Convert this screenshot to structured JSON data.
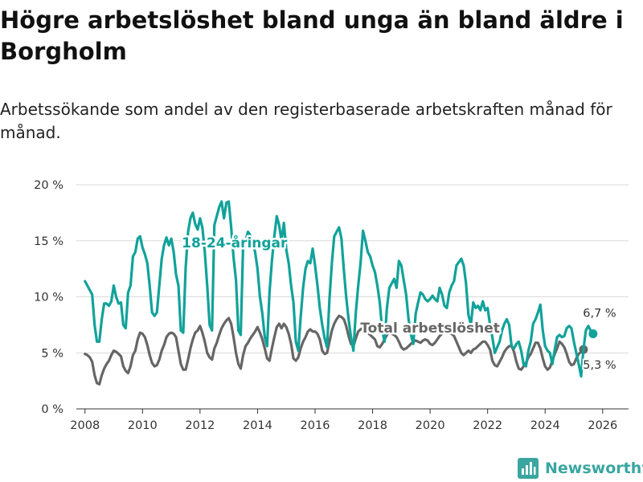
{
  "title": "Högre arbetslöshet bland unga än bland äldre i Borgholm",
  "subtitle": "Arbetssökande som andel av den registerbaserade arbetskraften månad för månad.",
  "brand": {
    "name": "Newsworthy",
    "icon": "bar-chart-logo-icon"
  },
  "colors": {
    "young": "#11a29a",
    "total": "#666666",
    "grid": "#d9d9d9",
    "axis": "#333333"
  },
  "chart_data": {
    "type": "line",
    "title": "Högre arbetslöshet bland unga än bland äldre i Borgholm",
    "xlabel": "",
    "ylabel": "",
    "xlim": [
      2007.7,
      2026.9
    ],
    "ylim": [
      0,
      20
    ],
    "x_ticks": [
      2008,
      2010,
      2012,
      2014,
      2016,
      2018,
      2020,
      2022,
      2024,
      2026
    ],
    "x_tick_labels": [
      "2008",
      "2010",
      "2012",
      "2014",
      "2016",
      "2018",
      "2020",
      "2022",
      "2024",
      "2026"
    ],
    "y_ticks": [
      0,
      5,
      10,
      15,
      20
    ],
    "y_tick_labels": [
      "0 %",
      "5 %",
      "10 %",
      "15 %",
      "20 %"
    ],
    "grid": "horizontal",
    "start": [
      2008,
      1
    ],
    "series": [
      {
        "name": "18-24-åringar",
        "label": "18-24-åringar",
        "end_label": "6,7 %",
        "values": [
          11.4,
          11.0,
          10.6,
          10.2,
          7.5,
          6.0,
          6.0,
          8.0,
          9.4,
          9.4,
          9.2,
          9.6,
          11.0,
          10.0,
          9.4,
          9.5,
          7.5,
          7.2,
          10.4,
          11.0,
          13.6,
          14.0,
          15.2,
          15.4,
          14.4,
          13.8,
          13.0,
          11.0,
          8.6,
          8.3,
          8.6,
          11.0,
          13.4,
          14.6,
          15.3,
          14.6,
          15.2,
          14.0,
          12.0,
          11.0,
          7.0,
          6.8,
          12.6,
          15.8,
          17.0,
          17.5,
          16.5,
          16.0,
          17.0,
          16.2,
          14.0,
          11.0,
          7.5,
          7.0,
          16.4,
          17.2,
          18.0,
          18.5,
          17.0,
          18.4,
          18.5,
          16.2,
          13.5,
          11.5,
          7.0,
          6.6,
          14.6,
          15.0,
          15.8,
          15.5,
          14.8,
          14.0,
          12.5,
          10.0,
          8.5,
          6.4,
          5.6,
          10.4,
          13.2,
          15.4,
          17.2,
          16.4,
          15.0,
          16.6,
          14.2,
          13.0,
          11.0,
          9.5,
          6.0,
          5.2,
          8.2,
          10.8,
          12.5,
          13.2,
          13.0,
          14.3,
          12.8,
          11.0,
          9.0,
          7.5,
          6.3,
          5.5,
          9.8,
          13.0,
          15.4,
          15.8,
          16.2,
          15.2,
          12.4,
          10.0,
          8.0,
          6.4,
          5.2,
          8.6,
          11.0,
          13.0,
          15.9,
          15.0,
          14.0,
          13.6,
          12.8,
          12.2,
          11.0,
          9.5,
          7.0,
          6.0,
          9.0,
          10.8,
          11.2,
          11.6,
          10.8,
          13.2,
          12.8,
          11.5,
          10.2,
          8.0,
          6.6,
          5.8,
          8.5,
          9.5,
          10.4,
          10.2,
          9.8,
          9.6,
          9.8,
          10.1,
          9.8,
          9.6,
          10.8,
          10.2,
          9.2,
          9.0,
          10.4,
          11.0,
          11.4,
          12.8,
          13.1,
          13.4,
          12.8,
          11.2,
          8.4,
          7.5,
          9.5,
          9.0,
          9.2,
          8.8,
          9.6,
          8.8,
          9.0,
          7.5,
          6.4,
          5.0,
          5.5,
          6.0,
          7.0,
          7.6,
          8.0,
          7.5,
          5.6,
          5.4,
          5.8,
          6.0,
          5.2,
          4.0,
          3.8,
          5.2,
          6.0,
          7.6,
          8.0,
          8.6,
          9.3,
          7.0,
          5.6,
          5.2,
          5.0,
          4.0,
          5.3,
          6.4,
          6.6,
          6.4,
          6.5,
          7.2,
          7.4,
          7.2,
          6.0,
          5.0,
          4.0,
          2.9,
          5.3,
          7.0,
          7.4,
          7.0,
          6.7
        ]
      },
      {
        "name": "Total arbetslöshet",
        "label": "Total arbetslöshet",
        "end_label": "5,3 %",
        "values": [
          4.9,
          4.8,
          4.6,
          4.2,
          3.0,
          2.3,
          2.2,
          3.0,
          3.6,
          4.0,
          4.3,
          4.8,
          5.2,
          5.1,
          4.9,
          4.7,
          3.8,
          3.4,
          3.2,
          3.8,
          4.8,
          5.2,
          6.2,
          6.8,
          6.7,
          6.4,
          5.7,
          4.8,
          4.1,
          3.8,
          3.9,
          4.4,
          5.2,
          5.7,
          6.4,
          6.7,
          6.8,
          6.7,
          6.4,
          5.2,
          4.0,
          3.5,
          3.5,
          4.4,
          5.4,
          6.2,
          6.8,
          7.0,
          7.4,
          6.8,
          6.0,
          5.0,
          4.6,
          4.4,
          5.4,
          5.9,
          6.6,
          7.2,
          7.6,
          7.9,
          8.1,
          7.6,
          6.4,
          5.0,
          4.0,
          3.6,
          4.8,
          5.6,
          5.9,
          6.3,
          6.6,
          6.9,
          7.3,
          6.8,
          6.2,
          5.4,
          4.5,
          4.3,
          5.4,
          6.4,
          7.3,
          7.6,
          7.2,
          7.6,
          7.3,
          6.7,
          5.8,
          4.5,
          4.3,
          4.6,
          5.4,
          6.0,
          6.4,
          6.9,
          7.1,
          6.9,
          6.9,
          6.7,
          6.2,
          5.2,
          4.9,
          5.0,
          6.0,
          7.0,
          7.6,
          8.0,
          8.3,
          8.2,
          8.0,
          7.4,
          6.5,
          5.8,
          5.6,
          6.3,
          6.9,
          7.1,
          7.2,
          7.0,
          6.8,
          6.6,
          6.4,
          6.2,
          5.6,
          5.5,
          5.8,
          6.2,
          6.6,
          6.9,
          6.7,
          6.6,
          6.4,
          6.0,
          5.5,
          5.3,
          5.4,
          5.6,
          5.8,
          6.0,
          6.1,
          6.0,
          5.9,
          6.1,
          6.2,
          6.1,
          5.8,
          5.7,
          5.9,
          6.2,
          6.5,
          6.7,
          6.9,
          7.0,
          6.8,
          6.7,
          6.5,
          6.0,
          5.5,
          5.0,
          4.8,
          5.0,
          5.2,
          5.0,
          5.3,
          5.4,
          5.6,
          5.8,
          6.0,
          6.0,
          5.7,
          5.3,
          4.3,
          3.9,
          3.8,
          4.2,
          4.6,
          5.1,
          5.4,
          5.6,
          5.6,
          5.1,
          4.2,
          3.6,
          3.5,
          3.8,
          4.1,
          4.6,
          4.9,
          5.4,
          5.9,
          5.9,
          5.4,
          4.5,
          3.8,
          3.5,
          3.7,
          4.3,
          4.9,
          5.4,
          6.0,
          5.8,
          5.5,
          4.9,
          4.2,
          3.9,
          4.0,
          4.5,
          4.9,
          5.1,
          5.3
        ]
      }
    ]
  }
}
